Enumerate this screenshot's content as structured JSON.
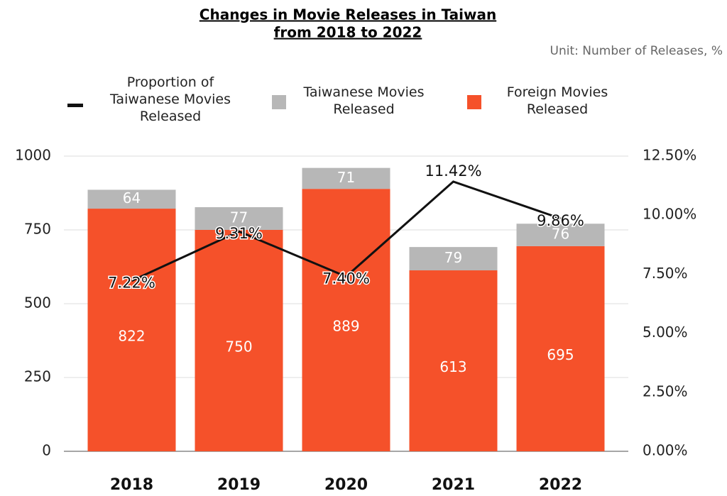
{
  "chart_data": {
    "type": "bar",
    "title": [
      "Changes in Movie Releases in Taiwan",
      "from 2018 to 2022"
    ],
    "subtitle": "Unit: Number of Releases, %",
    "categories": [
      "2018",
      "2019",
      "2020",
      "2021",
      "2022"
    ],
    "series": [
      {
        "name": "Foreign Movies Released",
        "type": "bar",
        "color": "#f5512a",
        "values": [
          822,
          750,
          889,
          613,
          695
        ]
      },
      {
        "name": "Taiwanese Movies Released",
        "type": "bar",
        "color": "#b7b7b7",
        "values": [
          64,
          77,
          71,
          79,
          76
        ]
      },
      {
        "name": "Proportion of Taiwanese Movies Released",
        "type": "line",
        "axis": "y2",
        "color": "#111111",
        "values": [
          7.22,
          9.31,
          7.4,
          11.42,
          9.86
        ],
        "value_labels": [
          "7.22%",
          "9.31%",
          "7.40%",
          "11.42%",
          "9.86%"
        ]
      }
    ],
    "stacked": true,
    "ylim": [
      0,
      1000
    ],
    "yticks": [
      0,
      250,
      500,
      750,
      1000
    ],
    "y2lim": [
      0,
      12.5
    ],
    "y2ticks": [
      {
        "value": 0,
        "label": "0.00%"
      },
      {
        "value": 2.5,
        "label": "2.50%"
      },
      {
        "value": 5,
        "label": "5.00%"
      },
      {
        "value": 7.5,
        "label": "7.50%"
      },
      {
        "value": 10,
        "label": "10.00%"
      },
      {
        "value": 12.5,
        "label": "12.50%"
      }
    ],
    "grid": true,
    "legend": "top"
  }
}
